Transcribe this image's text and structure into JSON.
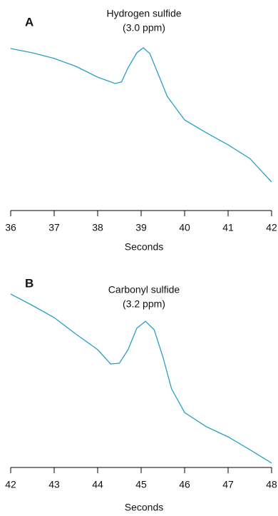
{
  "chart_data": [
    {
      "type": "line",
      "panel_label": "A",
      "title": "Hydrogen sulfide",
      "subtitle": "(3.0 ppm)",
      "xlabel": "Seconds",
      "x": [
        36,
        36.5,
        37,
        37.5,
        38,
        38.4,
        38.55,
        38.7,
        38.9,
        39.05,
        39.2,
        39.4,
        39.6,
        40,
        40.5,
        41,
        41.5,
        42
      ],
      "values": [
        92.5,
        90,
        86.7,
        82.1,
        75.8,
        72.1,
        73,
        81.3,
        90,
        92.9,
        89.6,
        77.1,
        64.6,
        50.8,
        43.3,
        36.3,
        28.3,
        14.6
      ],
      "color": "#2b9ec6",
      "xlim": [
        36,
        42
      ],
      "xticks": [
        36,
        37,
        38,
        39,
        40,
        41,
        42
      ],
      "ylim": [
        0,
        100
      ]
    },
    {
      "type": "line",
      "panel_label": "B",
      "title": "Carbonyl sulfide",
      "subtitle": "(3.2 ppm)",
      "xlabel": "Seconds",
      "x": [
        42,
        42.5,
        43,
        43.5,
        44,
        44.3,
        44.5,
        44.7,
        44.9,
        45.1,
        45.3,
        45.5,
        45.7,
        46,
        46.5,
        47,
        47.5,
        48
      ],
      "values": [
        99.2,
        92.5,
        85.4,
        75.8,
        66.7,
        58.3,
        58.8,
        66.7,
        79.2,
        83.3,
        78.3,
        62.5,
        43.8,
        30,
        21.7,
        15.8,
        8.3,
        0.5
      ],
      "color": "#2b9ec6",
      "xlim": [
        42,
        48
      ],
      "xticks": [
        42,
        43,
        44,
        45,
        46,
        47,
        48
      ],
      "ylim": [
        0,
        100
      ]
    }
  ]
}
